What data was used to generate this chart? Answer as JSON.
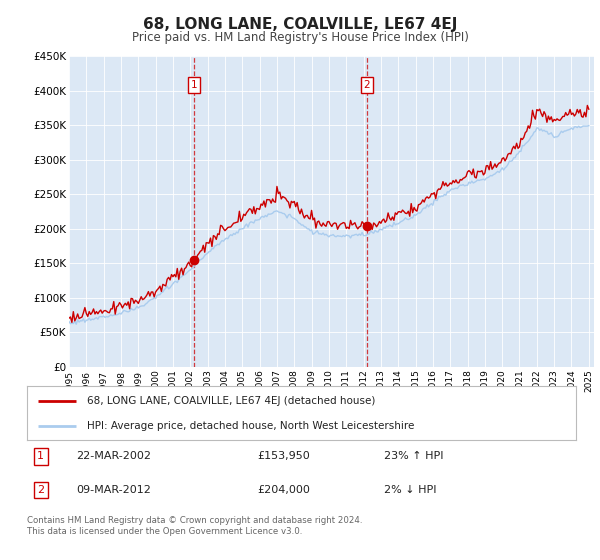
{
  "title": "68, LONG LANE, COALVILLE, LE67 4EJ",
  "subtitle": "Price paid vs. HM Land Registry's House Price Index (HPI)",
  "ylim": [
    0,
    450000
  ],
  "yticks": [
    0,
    50000,
    100000,
    150000,
    200000,
    250000,
    300000,
    350000,
    400000,
    450000
  ],
  "ytick_labels": [
    "£0",
    "£50K",
    "£100K",
    "£150K",
    "£200K",
    "£250K",
    "£300K",
    "£350K",
    "£400K",
    "£450K"
  ],
  "background_color": "#ddeeff",
  "plot_bg": "#dce8f5",
  "hpi_color": "#aaccee",
  "price_color": "#cc0000",
  "sale1_x": 2002.22,
  "sale1_price": 153950,
  "sale2_x": 2012.19,
  "sale2_price": 204000,
  "legend_price_label": "68, LONG LANE, COALVILLE, LE67 4EJ (detached house)",
  "legend_hpi_label": "HPI: Average price, detached house, North West Leicestershire",
  "annotation1": [
    "1",
    "22-MAR-2002",
    "£153,950",
    "23% ↑ HPI"
  ],
  "annotation2": [
    "2",
    "09-MAR-2012",
    "£204,000",
    "2% ↓ HPI"
  ],
  "footer": "Contains HM Land Registry data © Crown copyright and database right 2024.\nThis data is licensed under the Open Government Licence v3.0."
}
